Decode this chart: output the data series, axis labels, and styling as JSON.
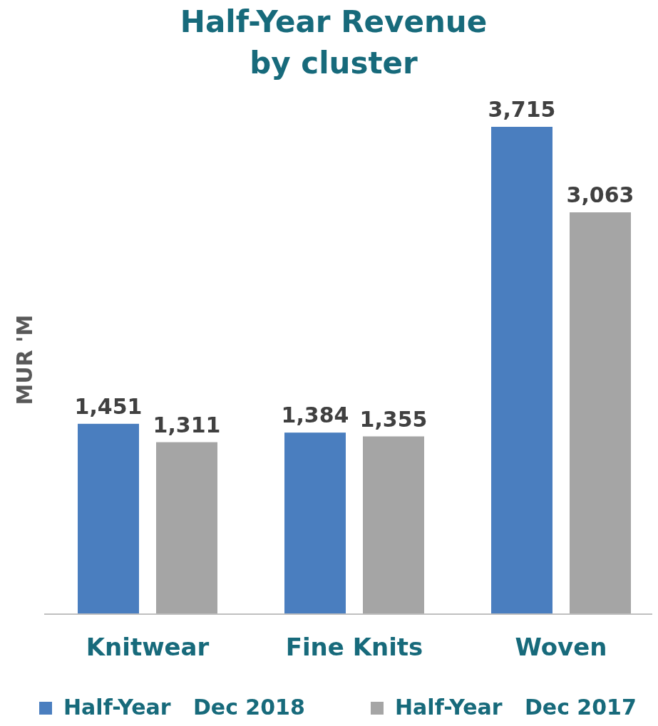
{
  "chart_data": {
    "type": "bar",
    "title": "Half-Year Revenue by cluster",
    "ylabel": "MUR 'M",
    "categories": [
      "Knitwear",
      "Fine Knits",
      "Woven"
    ],
    "series": [
      {
        "name": "Half-Year   Dec 2018",
        "color": "#4a7ebf",
        "values": [
          1451,
          1384,
          3715
        ],
        "value_labels": [
          "1,451",
          "1,384",
          "3,715"
        ]
      },
      {
        "name": "Half-Year   Dec 2017",
        "color": "#a5a5a5",
        "values": [
          1311,
          1355,
          3063
        ],
        "value_labels": [
          "1,311",
          "1,355",
          "3,063"
        ]
      }
    ],
    "legend": "bottom",
    "grid": false
  }
}
